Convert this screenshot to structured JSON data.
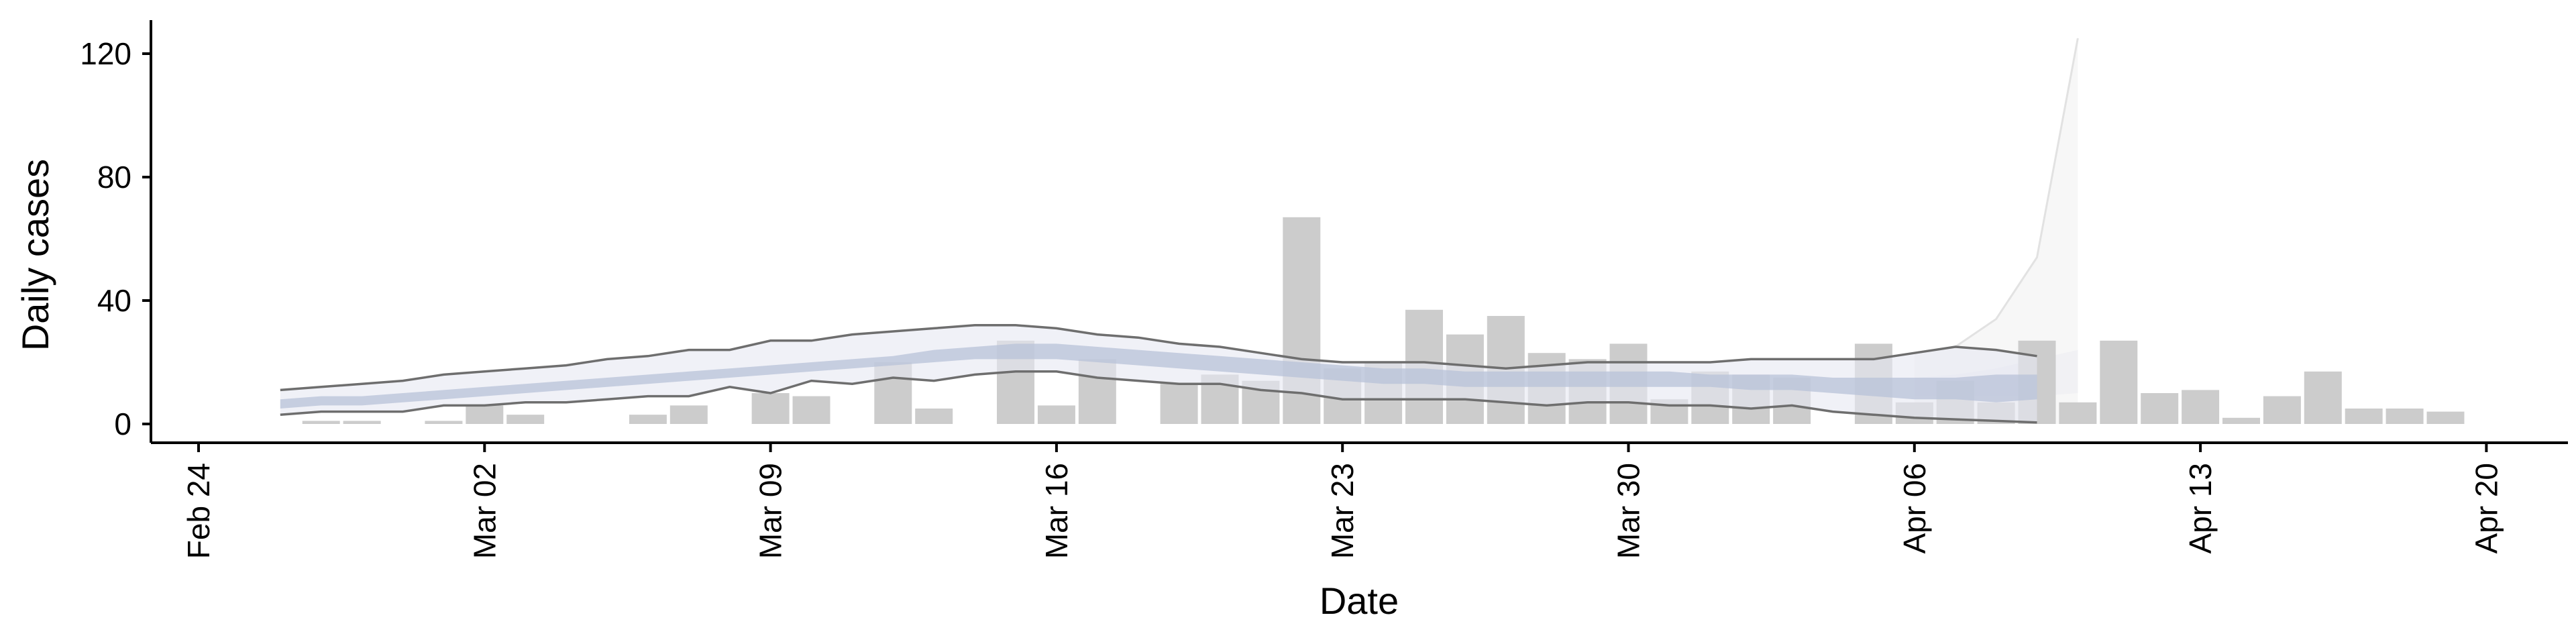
{
  "chart_data": {
    "type": "bar",
    "xlabel": "Date",
    "ylabel": "Daily cases",
    "x_axis_type": "date",
    "x_range": [
      "2020-02-24",
      "2020-04-20"
    ],
    "ylim": [
      -5,
      130
    ],
    "y_ticks": [
      0,
      40,
      80,
      120
    ],
    "x_ticks": [
      {
        "date": "2020-02-24",
        "label": "Feb 24"
      },
      {
        "date": "2020-03-02",
        "label": "Mar 02"
      },
      {
        "date": "2020-03-09",
        "label": "Mar 09"
      },
      {
        "date": "2020-03-16",
        "label": "Mar 16"
      },
      {
        "date": "2020-03-23",
        "label": "Mar 23"
      },
      {
        "date": "2020-03-30",
        "label": "Mar 30"
      },
      {
        "date": "2020-04-06",
        "label": "Apr 06"
      },
      {
        "date": "2020-04-13",
        "label": "Apr 13"
      },
      {
        "date": "2020-04-20",
        "label": "Apr 20"
      }
    ],
    "grid": false,
    "legend": "none",
    "colors": {
      "bars": "#cccccc",
      "inner_band": "#b8c2d8",
      "outer_band": "#e6e8f1",
      "interval_lines": "#6e6e6e",
      "forecast_band": "#f7f7f7",
      "forecast_line": "#e2e2e2"
    },
    "bars": {
      "start_date": "2020-02-27",
      "values": [
        1,
        1,
        0,
        1,
        6,
        3,
        0,
        0,
        3,
        6,
        0,
        10,
        9,
        0,
        20,
        5,
        0,
        27,
        6,
        21,
        0,
        13,
        16,
        14,
        67,
        18,
        20,
        37,
        29,
        35,
        23,
        21,
        26,
        8,
        17,
        16,
        15,
        0,
        26,
        7,
        14,
        7,
        27,
        7,
        27,
        10,
        11,
        2,
        9,
        17,
        5,
        5,
        4
      ]
    },
    "estimate": {
      "start_date": "2020-02-26",
      "lower": [
        3,
        4,
        4,
        4,
        6,
        6,
        7,
        7,
        8,
        9,
        9,
        12,
        10,
        14,
        13,
        15,
        14,
        16,
        17,
        17,
        15,
        14,
        13,
        13,
        11,
        10,
        8,
        8,
        8,
        8,
        7,
        6,
        7,
        7,
        6,
        6,
        5,
        6,
        4,
        3,
        2,
        1.5,
        1,
        0.5
      ],
      "lower_mid": [
        5,
        6,
        6,
        7,
        8,
        9,
        10,
        11,
        12,
        13,
        14,
        15,
        16,
        17,
        18,
        19,
        20,
        21,
        21,
        21,
        20,
        19,
        18,
        17,
        16,
        15,
        14,
        13,
        13,
        12,
        12,
        12,
        12,
        12,
        12,
        12,
        11,
        11,
        10,
        9,
        8,
        8,
        7,
        8
      ],
      "upper_mid": [
        8,
        9,
        9,
        10,
        11,
        12,
        13,
        14,
        15,
        16,
        17,
        18,
        19,
        20,
        21,
        22,
        24,
        25,
        26,
        26,
        25,
        24,
        23,
        22,
        21,
        20,
        19,
        18,
        18,
        17,
        17,
        17,
        17,
        17,
        17,
        16,
        16,
        16,
        15,
        15,
        15,
        15,
        16,
        16
      ],
      "upper": [
        11,
        12,
        13,
        14,
        16,
        17,
        18,
        19,
        21,
        22,
        24,
        24,
        27,
        27,
        29,
        30,
        31,
        32,
        32,
        31,
        29,
        28,
        26,
        25,
        23,
        21,
        20,
        20,
        20,
        19,
        18,
        19,
        20,
        20,
        20,
        20,
        21,
        21,
        21,
        21,
        23,
        25,
        24,
        22
      ]
    },
    "forecast": {
      "start_date": "2020-04-06",
      "lower": [
        0,
        0,
        0,
        0,
        0
      ],
      "upper": [
        23,
        25,
        34,
        54,
        125
      ],
      "upper_mid": [
        15,
        16,
        18,
        21,
        24
      ],
      "lower_mid": [
        9,
        9,
        9,
        9,
        10
      ]
    }
  }
}
